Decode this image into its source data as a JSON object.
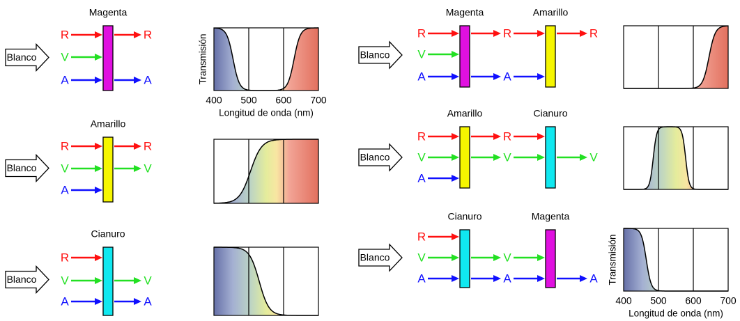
{
  "panels": [
    {
      "input": "Blanco",
      "filters": [
        {
          "name": "Magenta",
          "color": "#e010e0"
        }
      ],
      "rows": [
        [
          "R",
          "R"
        ],
        [
          "V"
        ],
        [
          "A",
          "A"
        ]
      ],
      "graph": {
        "ylabel": "Transmisión",
        "ticks": [
          "400",
          "500",
          "600",
          "700"
        ],
        "xlabel": "Longitud de onda (nm)"
      }
    },
    {
      "input": "Blanco",
      "filters": [
        {
          "name": "Amarillo",
          "color": "#f6f600"
        }
      ],
      "rows": [
        [
          "R",
          "R"
        ],
        [
          "V",
          "V"
        ],
        [
          "A"
        ]
      ]
    },
    {
      "input": "Blanco",
      "filters": [
        {
          "name": "Cianuro",
          "color": "#10e8f0"
        }
      ],
      "rows": [
        [
          "R"
        ],
        [
          "V",
          "V"
        ],
        [
          "A",
          "A"
        ]
      ]
    },
    {
      "input": "Blanco",
      "filters": [
        {
          "name": "Magenta",
          "color": "#e010e0"
        },
        {
          "name": "Amarillo",
          "color": "#f6f600"
        }
      ],
      "rows": [
        [
          "R",
          "R",
          "R"
        ],
        [
          "V"
        ],
        [
          "A",
          "A"
        ]
      ]
    },
    {
      "input": "Blanco",
      "filters": [
        {
          "name": "Amarillo",
          "color": "#f6f600"
        },
        {
          "name": "Cianuro",
          "color": "#10e8f0"
        }
      ],
      "rows": [
        [
          "R",
          "R"
        ],
        [
          "V",
          "V",
          "V"
        ],
        [
          "A"
        ]
      ]
    },
    {
      "input": "Blanco",
      "filters": [
        {
          "name": "Cianuro",
          "color": "#10e8f0"
        },
        {
          "name": "Magenta",
          "color": "#e010e0"
        }
      ],
      "rows": [
        [
          "R"
        ],
        [
          "V",
          "V"
        ],
        [
          "A",
          "A",
          "A"
        ]
      ],
      "graph": {
        "ylabel": "Transmisión",
        "ticks": [
          "400",
          "500",
          "600",
          "700"
        ],
        "xlabel": "Longitud de onda (nm)"
      }
    }
  ]
}
